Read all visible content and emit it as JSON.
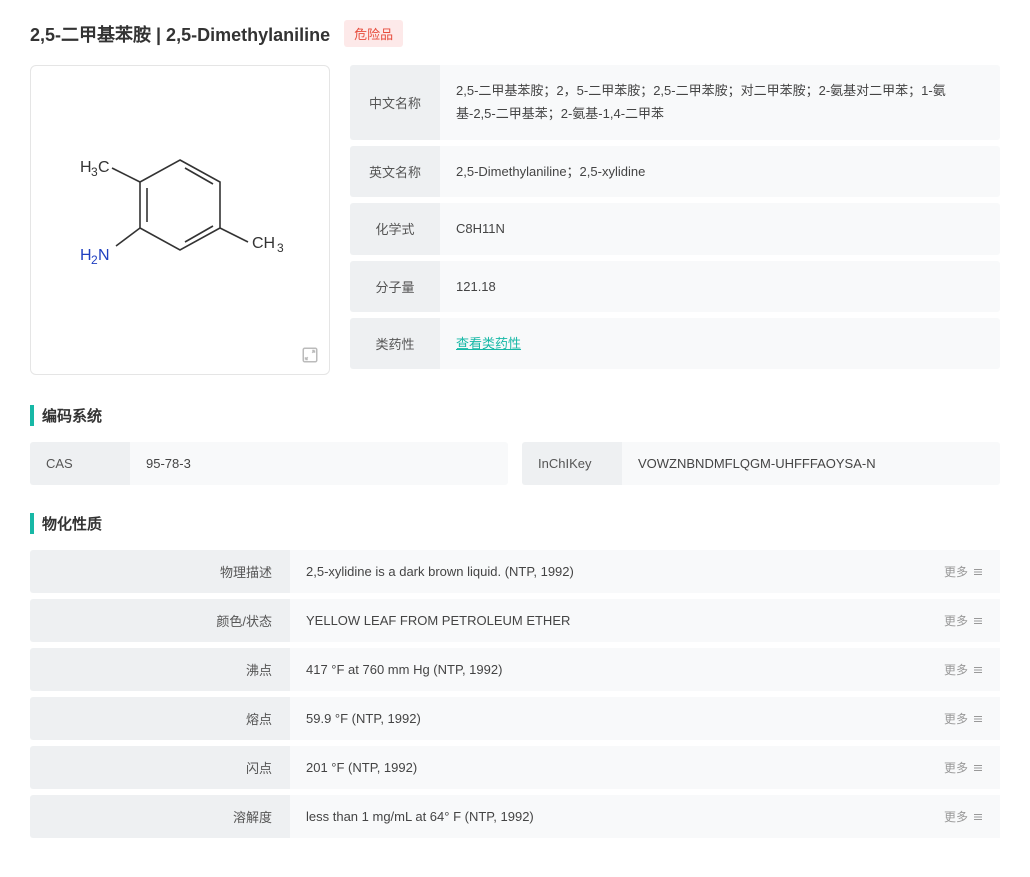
{
  "header": {
    "title": "2,5-二甲基苯胺 | 2,5-Dimethylaniline",
    "hazard_badge": "危险品"
  },
  "structure": {
    "labels": {
      "ch3_left": "H₃C",
      "ch3_right": "CH₃",
      "nh2": "H₂N"
    },
    "colors": {
      "carbon": "#333333",
      "nitrogen": "#2040c0",
      "bond": "#333333"
    }
  },
  "info": [
    {
      "label": "中文名称",
      "value": "2,5-二甲基苯胺；2，5-二甲苯胺；2,5-二甲苯胺；对二甲苯胺；2-氨基对二甲苯；1-氨基-2,5-二甲基苯；2-氨基-1,4-二甲苯"
    },
    {
      "label": "英文名称",
      "value": "2,5-Dimethylaniline；2,5-xylidine"
    },
    {
      "label": "化学式",
      "value": "C8H11N"
    },
    {
      "label": "分子量",
      "value": "121.18"
    },
    {
      "label": "类药性",
      "value": "查看类药性",
      "is_link": true
    }
  ],
  "sections": {
    "coding": "编码系统",
    "physical": "物化性质"
  },
  "codes": [
    {
      "label": "CAS",
      "value": "95-78-3"
    },
    {
      "label": "InChIKey",
      "value": "VOWZNBNDMFLQGM-UHFFFAOYSA-N"
    }
  ],
  "properties": [
    {
      "label": "物理描述",
      "value": "2,5-xylidine is a dark brown liquid. (NTP, 1992)"
    },
    {
      "label": "颜色/状态",
      "value": "YELLOW LEAF FROM PETROLEUM ETHER"
    },
    {
      "label": "沸点",
      "value": "417 °F at 760 mm Hg (NTP, 1992)"
    },
    {
      "label": "熔点",
      "value": "59.9 °F (NTP, 1992)"
    },
    {
      "label": "闪点",
      "value": "201 °F (NTP, 1992)"
    },
    {
      "label": "溶解度",
      "value": "less than 1 mg/mL at 64° F (NTP, 1992)"
    }
  ],
  "more_label": "更多"
}
